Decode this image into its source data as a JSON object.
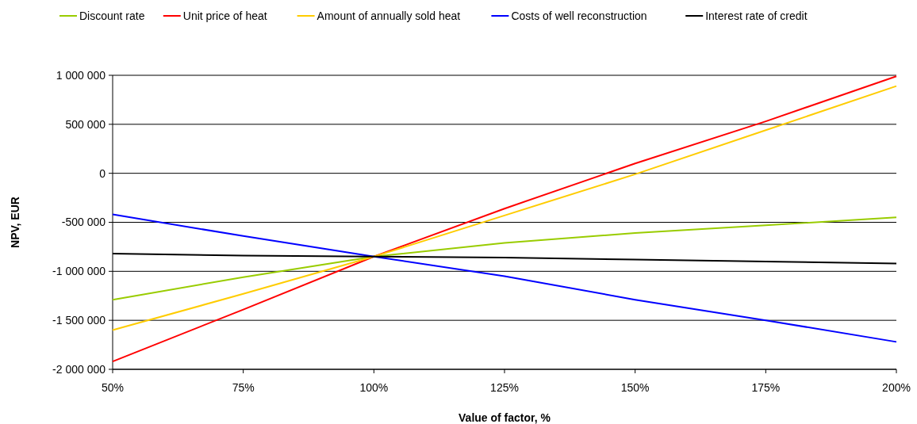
{
  "chart_data": {
    "type": "line",
    "xlabel": "Value of factor, %",
    "ylabel": "NPV, EUR",
    "x": [
      50,
      75,
      100,
      125,
      150,
      175,
      200
    ],
    "xlim": [
      50,
      200
    ],
    "xticks": [
      {
        "value": 50,
        "label": "50%"
      },
      {
        "value": 75,
        "label": "75%"
      },
      {
        "value": 100,
        "label": "100%"
      },
      {
        "value": 125,
        "label": "125%"
      },
      {
        "value": 150,
        "label": "150%"
      },
      {
        "value": 175,
        "label": "175%"
      },
      {
        "value": 200,
        "label": "200%"
      }
    ],
    "ylim": [
      -2000000,
      1000000
    ],
    "yticks": [
      {
        "value": -2000000,
        "label": "-2 000 000"
      },
      {
        "value": -1500000,
        "label": "-1 500 000"
      },
      {
        "value": -1000000,
        "label": "-1 000 000"
      },
      {
        "value": -500000,
        "label": "-500 000"
      },
      0,
      {
        "value": 500000,
        "label": "500 000"
      },
      {
        "value": 1000000,
        "label": "1 000 000"
      }
    ],
    "grid": "y",
    "legend": "top",
    "marker": "none",
    "line_style": "solid",
    "series": [
      {
        "name": "Discount rate",
        "color": "#99cc00",
        "values": [
          -1290000,
          -1060000,
          -850000,
          -710000,
          -610000,
          -530000,
          -450000
        ]
      },
      {
        "name": "Unit price of heat",
        "color": "#ff0000",
        "values": [
          -1920000,
          -1390000,
          -850000,
          -360000,
          100000,
          530000,
          990000
        ]
      },
      {
        "name": "Amount of annually sold heat",
        "color": "#ffcc00",
        "values": [
          -1600000,
          -1230000,
          -850000,
          -430000,
          -10000,
          440000,
          890000
        ]
      },
      {
        "name": "Costs of well reconstruction",
        "color": "#0000ff",
        "values": [
          -420000,
          -640000,
          -850000,
          -1050000,
          -1290000,
          -1500000,
          -1720000
        ]
      },
      {
        "name": "Interest rate of credit",
        "color": "#000000",
        "values": [
          -820000,
          -840000,
          -850000,
          -860000,
          -880000,
          -900000,
          -920000
        ]
      }
    ]
  }
}
